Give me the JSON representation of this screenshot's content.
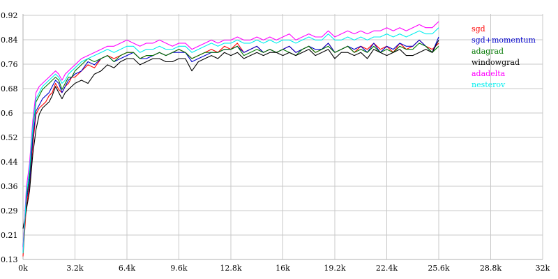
{
  "chart_data": {
    "type": "line",
    "title": "",
    "xlabel": "",
    "ylabel": "",
    "xlim": [
      0,
      32000
    ],
    "ylim": [
      0.13,
      0.92
    ],
    "grid": true,
    "legend_position": "top-right",
    "x_tick_labels": [
      "0k",
      "3.2k",
      "6.4k",
      "9.6k",
      "12.8k",
      "16k",
      "19.2k",
      "22.4k",
      "25.6k",
      "28.8k",
      "32k"
    ],
    "y_tick_labels": [
      "0.13",
      "0.21",
      "0.29",
      "0.36",
      "0.44",
      "0.52",
      "0.6",
      "0.68",
      "0.76",
      "0.84",
      "0.92"
    ],
    "x": [
      0,
      200,
      400,
      600,
      800,
      1000,
      1200,
      1400,
      1600,
      1800,
      2000,
      2200,
      2400,
      2600,
      2800,
      3000,
      3200,
      3600,
      4000,
      4400,
      4800,
      5200,
      5600,
      6000,
      6400,
      6800,
      7200,
      7600,
      8000,
      8400,
      8800,
      9200,
      9600,
      10000,
      10400,
      10800,
      11200,
      11600,
      12000,
      12400,
      12800,
      13200,
      13600,
      14000,
      14400,
      14800,
      15200,
      15600,
      16000,
      16400,
      16800,
      17200,
      17600,
      18000,
      18400,
      18800,
      19200,
      19600,
      20000,
      20400,
      20800,
      21200,
      21600,
      22000,
      22400,
      22800,
      23200,
      23600,
      24000,
      24400,
      24800,
      25200,
      25600
    ],
    "series": [
      {
        "name": "sgd",
        "color": "#ff0000",
        "values": [
          0.14,
          0.3,
          0.37,
          0.5,
          0.6,
          0.62,
          0.63,
          0.64,
          0.66,
          0.67,
          0.7,
          0.68,
          0.67,
          0.69,
          0.7,
          0.72,
          0.72,
          0.74,
          0.76,
          0.75,
          0.78,
          0.79,
          0.78,
          0.79,
          0.8,
          0.8,
          0.78,
          0.79,
          0.79,
          0.8,
          0.79,
          0.8,
          0.81,
          0.8,
          0.78,
          0.79,
          0.8,
          0.81,
          0.8,
          0.82,
          0.81,
          0.83,
          0.8,
          0.81,
          0.82,
          0.8,
          0.81,
          0.8,
          0.81,
          0.82,
          0.8,
          0.81,
          0.82,
          0.8,
          0.81,
          0.83,
          0.8,
          0.81,
          0.82,
          0.8,
          0.82,
          0.81,
          0.83,
          0.81,
          0.82,
          0.8,
          0.83,
          0.81,
          0.82,
          0.84,
          0.82,
          0.81,
          0.83
        ]
      },
      {
        "name": "sgd+momentum",
        "color": "#0000cc",
        "values": [
          0.17,
          0.32,
          0.38,
          0.52,
          0.61,
          0.63,
          0.65,
          0.66,
          0.67,
          0.69,
          0.71,
          0.7,
          0.67,
          0.69,
          0.71,
          0.72,
          0.73,
          0.74,
          0.77,
          0.76,
          0.78,
          0.79,
          0.77,
          0.78,
          0.79,
          0.8,
          0.78,
          0.78,
          0.79,
          0.8,
          0.79,
          0.8,
          0.8,
          0.8,
          0.77,
          0.78,
          0.79,
          0.8,
          0.8,
          0.81,
          0.81,
          0.82,
          0.8,
          0.81,
          0.82,
          0.8,
          0.81,
          0.8,
          0.81,
          0.82,
          0.8,
          0.81,
          0.82,
          0.81,
          0.81,
          0.83,
          0.8,
          0.81,
          0.82,
          0.81,
          0.82,
          0.8,
          0.83,
          0.8,
          0.82,
          0.81,
          0.83,
          0.82,
          0.82,
          0.84,
          0.82,
          0.8,
          0.85
        ]
      },
      {
        "name": "adagrad",
        "color": "#007700",
        "values": [
          0.15,
          0.33,
          0.4,
          0.55,
          0.64,
          0.66,
          0.68,
          0.69,
          0.7,
          0.71,
          0.72,
          0.71,
          0.68,
          0.7,
          0.72,
          0.72,
          0.74,
          0.76,
          0.78,
          0.77,
          0.78,
          0.79,
          0.77,
          0.79,
          0.8,
          0.8,
          0.78,
          0.79,
          0.79,
          0.8,
          0.79,
          0.8,
          0.81,
          0.8,
          0.78,
          0.79,
          0.8,
          0.8,
          0.8,
          0.81,
          0.81,
          0.82,
          0.79,
          0.8,
          0.81,
          0.8,
          0.81,
          0.8,
          0.81,
          0.8,
          0.79,
          0.81,
          0.82,
          0.8,
          0.81,
          0.82,
          0.8,
          0.81,
          0.82,
          0.8,
          0.81,
          0.8,
          0.82,
          0.8,
          0.81,
          0.8,
          0.82,
          0.81,
          0.81,
          0.83,
          0.82,
          0.8,
          0.82
        ]
      },
      {
        "name": "windowgrad",
        "color": "#000000",
        "values": [
          0.23,
          0.29,
          0.35,
          0.47,
          0.55,
          0.6,
          0.62,
          0.63,
          0.64,
          0.66,
          0.69,
          0.67,
          0.65,
          0.67,
          0.68,
          0.69,
          0.7,
          0.71,
          0.7,
          0.73,
          0.74,
          0.76,
          0.75,
          0.77,
          0.78,
          0.78,
          0.76,
          0.77,
          0.78,
          0.78,
          0.77,
          0.77,
          0.78,
          0.78,
          0.74,
          0.77,
          0.78,
          0.79,
          0.78,
          0.8,
          0.79,
          0.8,
          0.78,
          0.79,
          0.8,
          0.79,
          0.8,
          0.8,
          0.79,
          0.8,
          0.79,
          0.8,
          0.81,
          0.79,
          0.8,
          0.81,
          0.78,
          0.8,
          0.8,
          0.79,
          0.8,
          0.78,
          0.81,
          0.8,
          0.79,
          0.8,
          0.81,
          0.79,
          0.79,
          0.8,
          0.81,
          0.8,
          0.84
        ]
      },
      {
        "name": "adadelta",
        "color": "#ff00ff",
        "values": [
          0.16,
          0.36,
          0.44,
          0.58,
          0.67,
          0.69,
          0.7,
          0.71,
          0.72,
          0.73,
          0.74,
          0.73,
          0.71,
          0.73,
          0.74,
          0.75,
          0.76,
          0.78,
          0.79,
          0.8,
          0.81,
          0.82,
          0.82,
          0.83,
          0.84,
          0.83,
          0.82,
          0.83,
          0.83,
          0.84,
          0.83,
          0.82,
          0.83,
          0.83,
          0.81,
          0.82,
          0.83,
          0.84,
          0.83,
          0.84,
          0.84,
          0.85,
          0.84,
          0.84,
          0.85,
          0.84,
          0.85,
          0.84,
          0.85,
          0.86,
          0.84,
          0.85,
          0.86,
          0.85,
          0.85,
          0.87,
          0.85,
          0.86,
          0.87,
          0.86,
          0.87,
          0.86,
          0.87,
          0.87,
          0.88,
          0.87,
          0.88,
          0.87,
          0.88,
          0.89,
          0.88,
          0.88,
          0.9
        ]
      },
      {
        "name": "nesterov",
        "color": "#00eeee",
        "values": [
          0.15,
          0.34,
          0.42,
          0.56,
          0.65,
          0.67,
          0.69,
          0.7,
          0.71,
          0.72,
          0.73,
          0.72,
          0.7,
          0.71,
          0.73,
          0.74,
          0.75,
          0.77,
          0.78,
          0.79,
          0.8,
          0.81,
          0.8,
          0.81,
          0.82,
          0.82,
          0.8,
          0.81,
          0.81,
          0.82,
          0.81,
          0.81,
          0.82,
          0.82,
          0.8,
          0.81,
          0.82,
          0.83,
          0.82,
          0.83,
          0.83,
          0.84,
          0.83,
          0.83,
          0.84,
          0.83,
          0.84,
          0.83,
          0.84,
          0.84,
          0.83,
          0.84,
          0.85,
          0.84,
          0.84,
          0.86,
          0.84,
          0.84,
          0.85,
          0.84,
          0.85,
          0.84,
          0.85,
          0.85,
          0.86,
          0.85,
          0.86,
          0.85,
          0.86,
          0.87,
          0.86,
          0.86,
          0.88
        ]
      }
    ]
  }
}
